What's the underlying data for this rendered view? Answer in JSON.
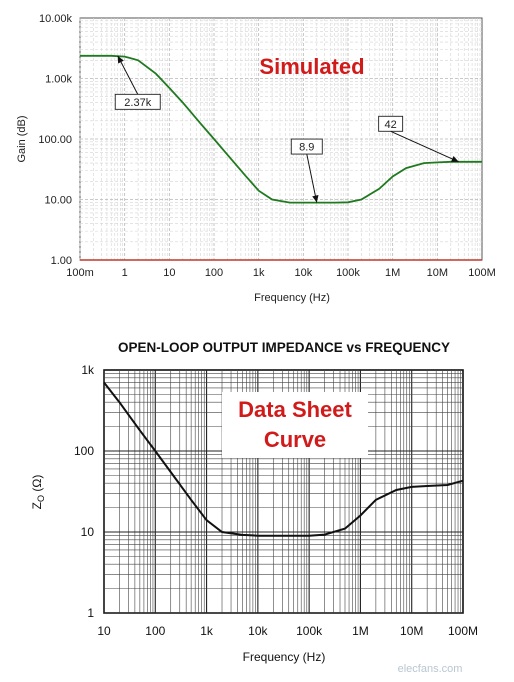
{
  "chart_data": [
    {
      "type": "line",
      "overlay_label": "Simulated",
      "xlabel": "Frequency (Hz)",
      "ylabel": "Gain (dB)",
      "x_scale": "log",
      "y_scale": "log",
      "xlim": [
        0.1,
        100000000
      ],
      "ylim": [
        1,
        10000
      ],
      "grid": true,
      "x_ticks": [
        {
          "v": 0.1,
          "label": "100m"
        },
        {
          "v": 1,
          "label": "1"
        },
        {
          "v": 10,
          "label": "10"
        },
        {
          "v": 100,
          "label": "100"
        },
        {
          "v": 1000,
          "label": "1k"
        },
        {
          "v": 10000,
          "label": "10k"
        },
        {
          "v": 100000,
          "label": "100k"
        },
        {
          "v": 1000000,
          "label": "1M"
        },
        {
          "v": 10000000,
          "label": "10M"
        },
        {
          "v": 100000000,
          "label": "100M"
        }
      ],
      "y_ticks": [
        {
          "v": 1,
          "label": "1.00"
        },
        {
          "v": 10,
          "label": "10.00"
        },
        {
          "v": 100,
          "label": "100.00"
        },
        {
          "v": 1000,
          "label": "1.00k"
        },
        {
          "v": 10000,
          "label": "10.00k"
        }
      ],
      "series": [
        {
          "color": "#1f7a1f",
          "x": [
            0.1,
            0.5,
            1,
            2,
            5,
            10,
            20,
            50,
            100,
            200,
            500,
            1000,
            2000,
            5000,
            10000,
            50000,
            100000,
            200000,
            500000,
            1000000,
            2000000,
            5000000,
            10000000,
            20000000,
            50000000,
            100000000
          ],
          "y": [
            2370,
            2370,
            2300,
            2000,
            1200,
            700,
            400,
            180,
            100,
            55,
            25,
            14,
            10,
            8.9,
            8.9,
            8.9,
            9,
            10,
            15,
            24,
            33,
            40,
            41,
            42,
            42,
            42
          ]
        }
      ],
      "annotations": [
        {
          "text": "2.37k",
          "x": 0.7,
          "y": 2370
        },
        {
          "text": "8.9",
          "x": 20000,
          "y": 8.9
        },
        {
          "text": "42",
          "x": 30000000,
          "y": 42
        }
      ]
    },
    {
      "type": "line",
      "title": "OPEN-LOOP OUTPUT IMPEDANCE vs FREQUENCY",
      "overlay_label": [
        "Data Sheet",
        "Curve"
      ],
      "xlabel": "Frequency (Hz)",
      "ylabel": "Z",
      "ylabel_sub": "O",
      "ylabel_unit": " (Ω)",
      "x_scale": "log",
      "y_scale": "log",
      "xlim": [
        10,
        100000000
      ],
      "ylim": [
        1,
        1000
      ],
      "grid": true,
      "x_ticks": [
        {
          "v": 10,
          "label": "10"
        },
        {
          "v": 100,
          "label": "100"
        },
        {
          "v": 1000,
          "label": "1k"
        },
        {
          "v": 10000,
          "label": "10k"
        },
        {
          "v": 100000,
          "label": "100k"
        },
        {
          "v": 1000000,
          "label": "1M"
        },
        {
          "v": 10000000,
          "label": "10M"
        },
        {
          "v": 100000000,
          "label": "100M"
        }
      ],
      "y_ticks": [
        {
          "v": 1,
          "label": "1"
        },
        {
          "v": 10,
          "label": "10"
        },
        {
          "v": 100,
          "label": "100"
        },
        {
          "v": 1000,
          "label": "1k"
        }
      ],
      "series": [
        {
          "color": "#111111",
          "x": [
            10,
            20,
            50,
            100,
            200,
            500,
            1000,
            2000,
            5000,
            10000,
            50000,
            100000,
            200000,
            500000,
            1000000,
            2000000,
            5000000,
            10000000,
            20000000,
            50000000,
            100000000
          ],
          "y": [
            700,
            400,
            180,
            100,
            55,
            25,
            14,
            10,
            9.2,
            9,
            9,
            9,
            9.3,
            11,
            16,
            25,
            33,
            36,
            37,
            38,
            43
          ]
        }
      ]
    }
  ],
  "watermark": "elecfans.com"
}
